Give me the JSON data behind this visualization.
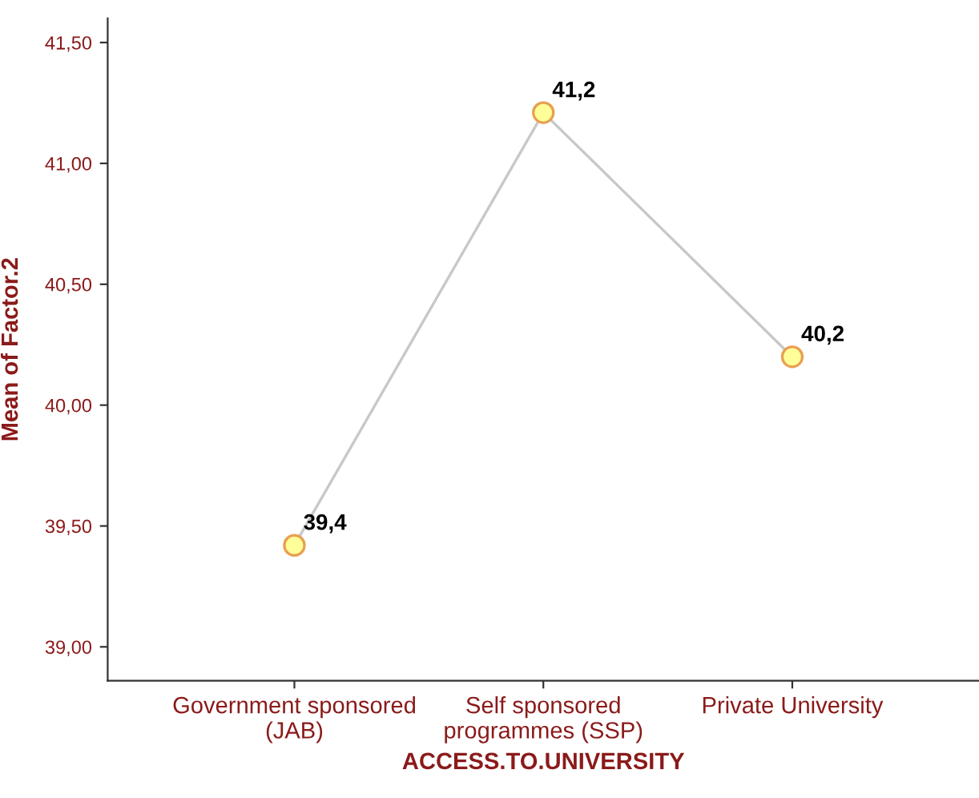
{
  "chart_data": {
    "type": "line",
    "xlabel": "ACCESS.TO.UNIVERSITY",
    "ylabel": "Mean of Factor.2",
    "categories": [
      "Government sponsored\n(JAB)",
      "Self sponsored\nprogrammes (SSP)",
      "Private University"
    ],
    "series": [
      {
        "color": "#c8c8c8",
        "values": [
          39.42,
          41.21,
          40.2
        ],
        "value_labels": [
          "39,4",
          "41,2",
          "40,2"
        ]
      }
    ],
    "marker": "circle",
    "line_style": "solid",
    "grid": false,
    "legend": false,
    "ylim": [
      38.86,
      41.6
    ],
    "yticks": [
      {
        "value": 39.0,
        "label": "39,00"
      },
      {
        "value": 39.5,
        "label": "39,50"
      },
      {
        "value": 40.0,
        "label": "40,00"
      },
      {
        "value": 40.5,
        "label": "40,50"
      },
      {
        "value": 41.0,
        "label": "41,00"
      },
      {
        "value": 41.5,
        "label": "41,50"
      }
    ]
  }
}
